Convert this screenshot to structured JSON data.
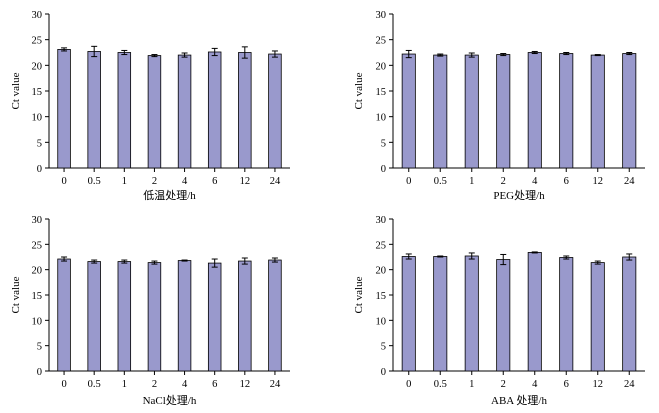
{
  "chart_data": [
    {
      "type": "bar",
      "title": "",
      "xlabel": "低温处理/h",
      "ylabel": "Ct value",
      "ylim": [
        0,
        30
      ],
      "yticks": [
        0,
        5,
        10,
        15,
        20,
        25,
        30
      ],
      "categories": [
        "0",
        "0.5",
        "1",
        "2",
        "4",
        "6",
        "12",
        "24"
      ],
      "values": [
        23.1,
        22.7,
        22.5,
        21.9,
        22.0,
        22.6,
        22.5,
        22.2
      ],
      "errors": [
        0.3,
        1.0,
        0.4,
        0.2,
        0.4,
        0.7,
        1.1,
        0.6
      ],
      "grid": false,
      "bar_color": "#9999cc"
    },
    {
      "type": "bar",
      "title": "",
      "xlabel": "PEG处理/h",
      "ylabel": "Ct value",
      "ylim": [
        0,
        30
      ],
      "yticks": [
        0,
        5,
        10,
        15,
        20,
        25,
        30
      ],
      "categories": [
        "0",
        "0.5",
        "1",
        "2",
        "4",
        "6",
        "12",
        "24"
      ],
      "values": [
        22.2,
        22.0,
        22.0,
        22.1,
        22.5,
        22.3,
        22.0,
        22.3
      ],
      "errors": [
        0.7,
        0.2,
        0.4,
        0.2,
        0.2,
        0.2,
        0.1,
        0.2
      ],
      "grid": false,
      "bar_color": "#9999cc"
    },
    {
      "type": "bar",
      "title": "",
      "xlabel": "NaCl处理/h",
      "ylabel": "Ct value",
      "ylim": [
        0,
        30
      ],
      "yticks": [
        0,
        5,
        10,
        15,
        20,
        25,
        30
      ],
      "categories": [
        "0",
        "0.5",
        "1",
        "2",
        "4",
        "6",
        "12",
        "24"
      ],
      "values": [
        22.1,
        21.6,
        21.6,
        21.4,
        21.8,
        21.3,
        21.7,
        21.9
      ],
      "errors": [
        0.4,
        0.3,
        0.3,
        0.3,
        0.1,
        0.8,
        0.6,
        0.4
      ],
      "grid": false,
      "bar_color": "#9999cc"
    },
    {
      "type": "bar",
      "title": "",
      "xlabel": "ABA 处理/h",
      "ylabel": "Ct value",
      "ylim": [
        0,
        30
      ],
      "yticks": [
        0,
        5,
        10,
        15,
        20,
        25,
        30
      ],
      "categories": [
        "0",
        "0.5",
        "1",
        "2",
        "4",
        "6",
        "12",
        "24"
      ],
      "values": [
        22.6,
        22.6,
        22.7,
        22.0,
        23.4,
        22.4,
        21.4,
        22.5
      ],
      "errors": [
        0.5,
        0.1,
        0.6,
        1.0,
        0.1,
        0.3,
        0.3,
        0.6
      ],
      "grid": false,
      "bar_color": "#9999cc"
    }
  ]
}
